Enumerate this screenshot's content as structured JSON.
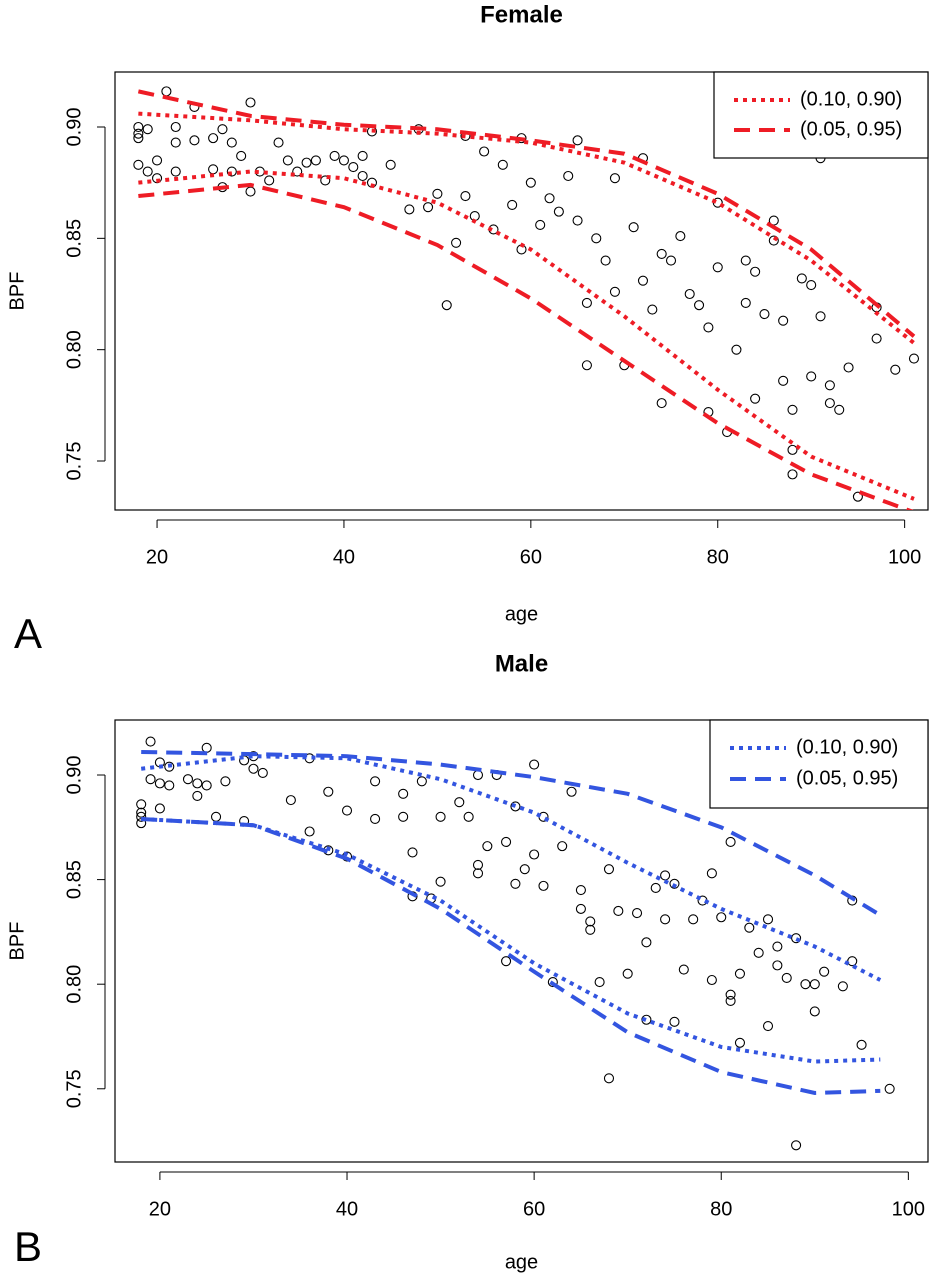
{
  "chart_data": [
    {
      "type": "scatter",
      "title": "Female",
      "xlabel": "age",
      "ylabel": "BPF",
      "xlim": [
        15.5,
        102.5
      ],
      "ylim": [
        0.728,
        0.9247
      ],
      "xticks": [
        20,
        40,
        60,
        80,
        100
      ],
      "yticks": [
        0.75,
        {
          "value": 0.8,
          "label": "0.80"
        },
        0.85,
        {
          "value": 0.9,
          "label": "0.90"
        }
      ],
      "legend": "top-right",
      "points": {
        "x": [
          18,
          18,
          18,
          18,
          19,
          19,
          20,
          20,
          21,
          22,
          22,
          22,
          24,
          24,
          26,
          26,
          27,
          27,
          28,
          28,
          29,
          30,
          30,
          31,
          32,
          33,
          34,
          35,
          36,
          37,
          38,
          39,
          40,
          41,
          42,
          42,
          43,
          43,
          45,
          47,
          48,
          49,
          50,
          51,
          52,
          53,
          53,
          54,
          55,
          56,
          57,
          58,
          59,
          59,
          60,
          61,
          62,
          63,
          64,
          65,
          65,
          66,
          66,
          67,
          68,
          69,
          69,
          70,
          71,
          72,
          72,
          73,
          74,
          74,
          75,
          76,
          77,
          78,
          79,
          79,
          80,
          80,
          81,
          82,
          83,
          83,
          84,
          84,
          85,
          86,
          86,
          87,
          87,
          88,
          88,
          88,
          89,
          90,
          90,
          91,
          91,
          92,
          92,
          93,
          94,
          95,
          97,
          97,
          99,
          101
        ],
        "y": [
          0.883,
          0.895,
          0.9,
          0.897,
          0.899,
          0.88,
          0.885,
          0.877,
          0.916,
          0.893,
          0.9,
          0.88,
          0.909,
          0.894,
          0.895,
          0.881,
          0.873,
          0.899,
          0.893,
          0.88,
          0.887,
          0.911,
          0.871,
          0.88,
          0.876,
          0.893,
          0.885,
          0.88,
          0.884,
          0.885,
          0.876,
          0.887,
          0.885,
          0.882,
          0.887,
          0.878,
          0.875,
          0.898,
          0.883,
          0.863,
          0.899,
          0.864,
          0.87,
          0.82,
          0.848,
          0.896,
          0.869,
          0.86,
          0.889,
          0.854,
          0.883,
          0.865,
          0.845,
          0.895,
          0.875,
          0.856,
          0.868,
          0.862,
          0.878,
          0.894,
          0.858,
          0.821,
          0.793,
          0.85,
          0.84,
          0.826,
          0.877,
          0.793,
          0.855,
          0.886,
          0.831,
          0.818,
          0.776,
          0.843,
          0.84,
          0.851,
          0.825,
          0.82,
          0.81,
          0.772,
          0.837,
          0.866,
          0.763,
          0.8,
          0.84,
          0.821,
          0.778,
          0.835,
          0.816,
          0.858,
          0.849,
          0.786,
          0.813,
          0.773,
          0.744,
          0.755,
          0.832,
          0.788,
          0.829,
          0.815,
          0.886,
          0.784,
          0.776,
          0.773,
          0.792,
          0.734,
          0.805,
          0.819,
          0.791,
          0.796
        ]
      },
      "series": [
        {
          "name": "(0.10, 0.90)",
          "color": "#ee1c25",
          "dash": "dotted",
          "x": [
            18,
            30,
            40,
            50,
            60,
            70,
            80,
            90,
            101
          ],
          "lower": [
            0.875,
            0.88,
            0.877,
            0.866,
            0.845,
            0.815,
            0.782,
            0.752,
            0.733
          ],
          "upper": [
            0.906,
            0.903,
            0.899,
            0.897,
            0.893,
            0.884,
            0.866,
            0.84,
            0.803
          ]
        },
        {
          "name": "(0.05, 0.95)",
          "color": "#ee1c25",
          "dash": "dashed",
          "x": [
            18,
            30,
            40,
            50,
            60,
            70,
            80,
            90,
            101
          ],
          "lower": [
            0.869,
            0.874,
            0.864,
            0.847,
            0.823,
            0.795,
            0.767,
            0.744,
            0.727
          ],
          "upper": [
            0.916,
            0.905,
            0.901,
            0.899,
            0.894,
            0.888,
            0.87,
            0.845,
            0.806
          ]
        }
      ]
    },
    {
      "type": "scatter",
      "title": "Male",
      "xlabel": "age",
      "ylabel": "BPF",
      "xlim": [
        15.2,
        102.1
      ],
      "ylim": [
        0.715,
        0.9263
      ],
      "xticks": [
        20,
        40,
        60,
        80,
        100
      ],
      "yticks": [
        0.75,
        {
          "value": 0.8,
          "label": "0.80"
        },
        0.85,
        {
          "value": 0.9,
          "label": "0.90"
        }
      ],
      "legend": "top-right",
      "points": {
        "x": [
          18,
          18,
          18,
          18,
          19,
          19,
          20,
          20,
          20,
          21,
          21,
          23,
          24,
          24,
          25,
          25,
          26,
          27,
          29,
          29,
          30,
          30,
          31,
          34,
          36,
          36,
          38,
          38,
          40,
          40,
          43,
          43,
          46,
          46,
          47,
          47,
          48,
          49,
          50,
          50,
          52,
          53,
          54,
          54,
          54,
          55,
          56,
          57,
          57,
          58,
          58,
          59,
          60,
          60,
          61,
          61,
          62,
          63,
          64,
          65,
          65,
          66,
          66,
          67,
          68,
          68,
          69,
          70,
          71,
          72,
          72,
          73,
          74,
          74,
          75,
          75,
          76,
          77,
          78,
          79,
          79,
          80,
          81,
          81,
          81,
          82,
          82,
          83,
          84,
          85,
          85,
          86,
          86,
          87,
          88,
          88,
          89,
          90,
          90,
          91,
          93,
          94,
          94,
          95,
          98
        ],
        "y": [
          0.877,
          0.882,
          0.886,
          0.88,
          0.916,
          0.898,
          0.884,
          0.906,
          0.896,
          0.904,
          0.895,
          0.898,
          0.89,
          0.896,
          0.913,
          0.895,
          0.88,
          0.897,
          0.907,
          0.878,
          0.909,
          0.903,
          0.901,
          0.888,
          0.873,
          0.908,
          0.892,
          0.864,
          0.883,
          0.861,
          0.897,
          0.879,
          0.891,
          0.88,
          0.863,
          0.842,
          0.897,
          0.841,
          0.88,
          0.849,
          0.887,
          0.88,
          0.857,
          0.853,
          0.9,
          0.866,
          0.9,
          0.868,
          0.811,
          0.848,
          0.885,
          0.855,
          0.905,
          0.862,
          0.88,
          0.847,
          0.801,
          0.866,
          0.892,
          0.845,
          0.836,
          0.83,
          0.826,
          0.801,
          0.855,
          0.755,
          0.835,
          0.805,
          0.834,
          0.82,
          0.783,
          0.846,
          0.831,
          0.852,
          0.782,
          0.848,
          0.807,
          0.831,
          0.84,
          0.853,
          0.802,
          0.832,
          0.868,
          0.795,
          0.792,
          0.805,
          0.772,
          0.827,
          0.815,
          0.831,
          0.78,
          0.818,
          0.809,
          0.803,
          0.822,
          0.723,
          0.8,
          0.8,
          0.787,
          0.806,
          0.799,
          0.84,
          0.811,
          0.771,
          0.75
        ]
      },
      "series": [
        {
          "name": "(0.10, 0.90)",
          "color": "#3355e0",
          "dash": "dotted",
          "x": [
            18,
            30,
            40,
            50,
            60,
            70,
            80,
            90,
            97
          ],
          "lower": [
            0.879,
            0.876,
            0.862,
            0.84,
            0.81,
            0.786,
            0.77,
            0.763,
            0.764
          ],
          "upper": [
            0.903,
            0.909,
            0.908,
            0.898,
            0.882,
            0.858,
            0.836,
            0.818,
            0.802
          ]
        },
        {
          "name": "(0.05, 0.95)",
          "color": "#3355e0",
          "dash": "dashed",
          "x": [
            18,
            30,
            40,
            50,
            60,
            70,
            80,
            90,
            97
          ],
          "lower": [
            0.879,
            0.876,
            0.86,
            0.836,
            0.806,
            0.777,
            0.758,
            0.748,
            0.749
          ],
          "upper": [
            0.911,
            0.91,
            0.909,
            0.905,
            0.899,
            0.891,
            0.875,
            0.852,
            0.833
          ]
        }
      ]
    }
  ],
  "panel_labels": [
    "A",
    "B"
  ]
}
